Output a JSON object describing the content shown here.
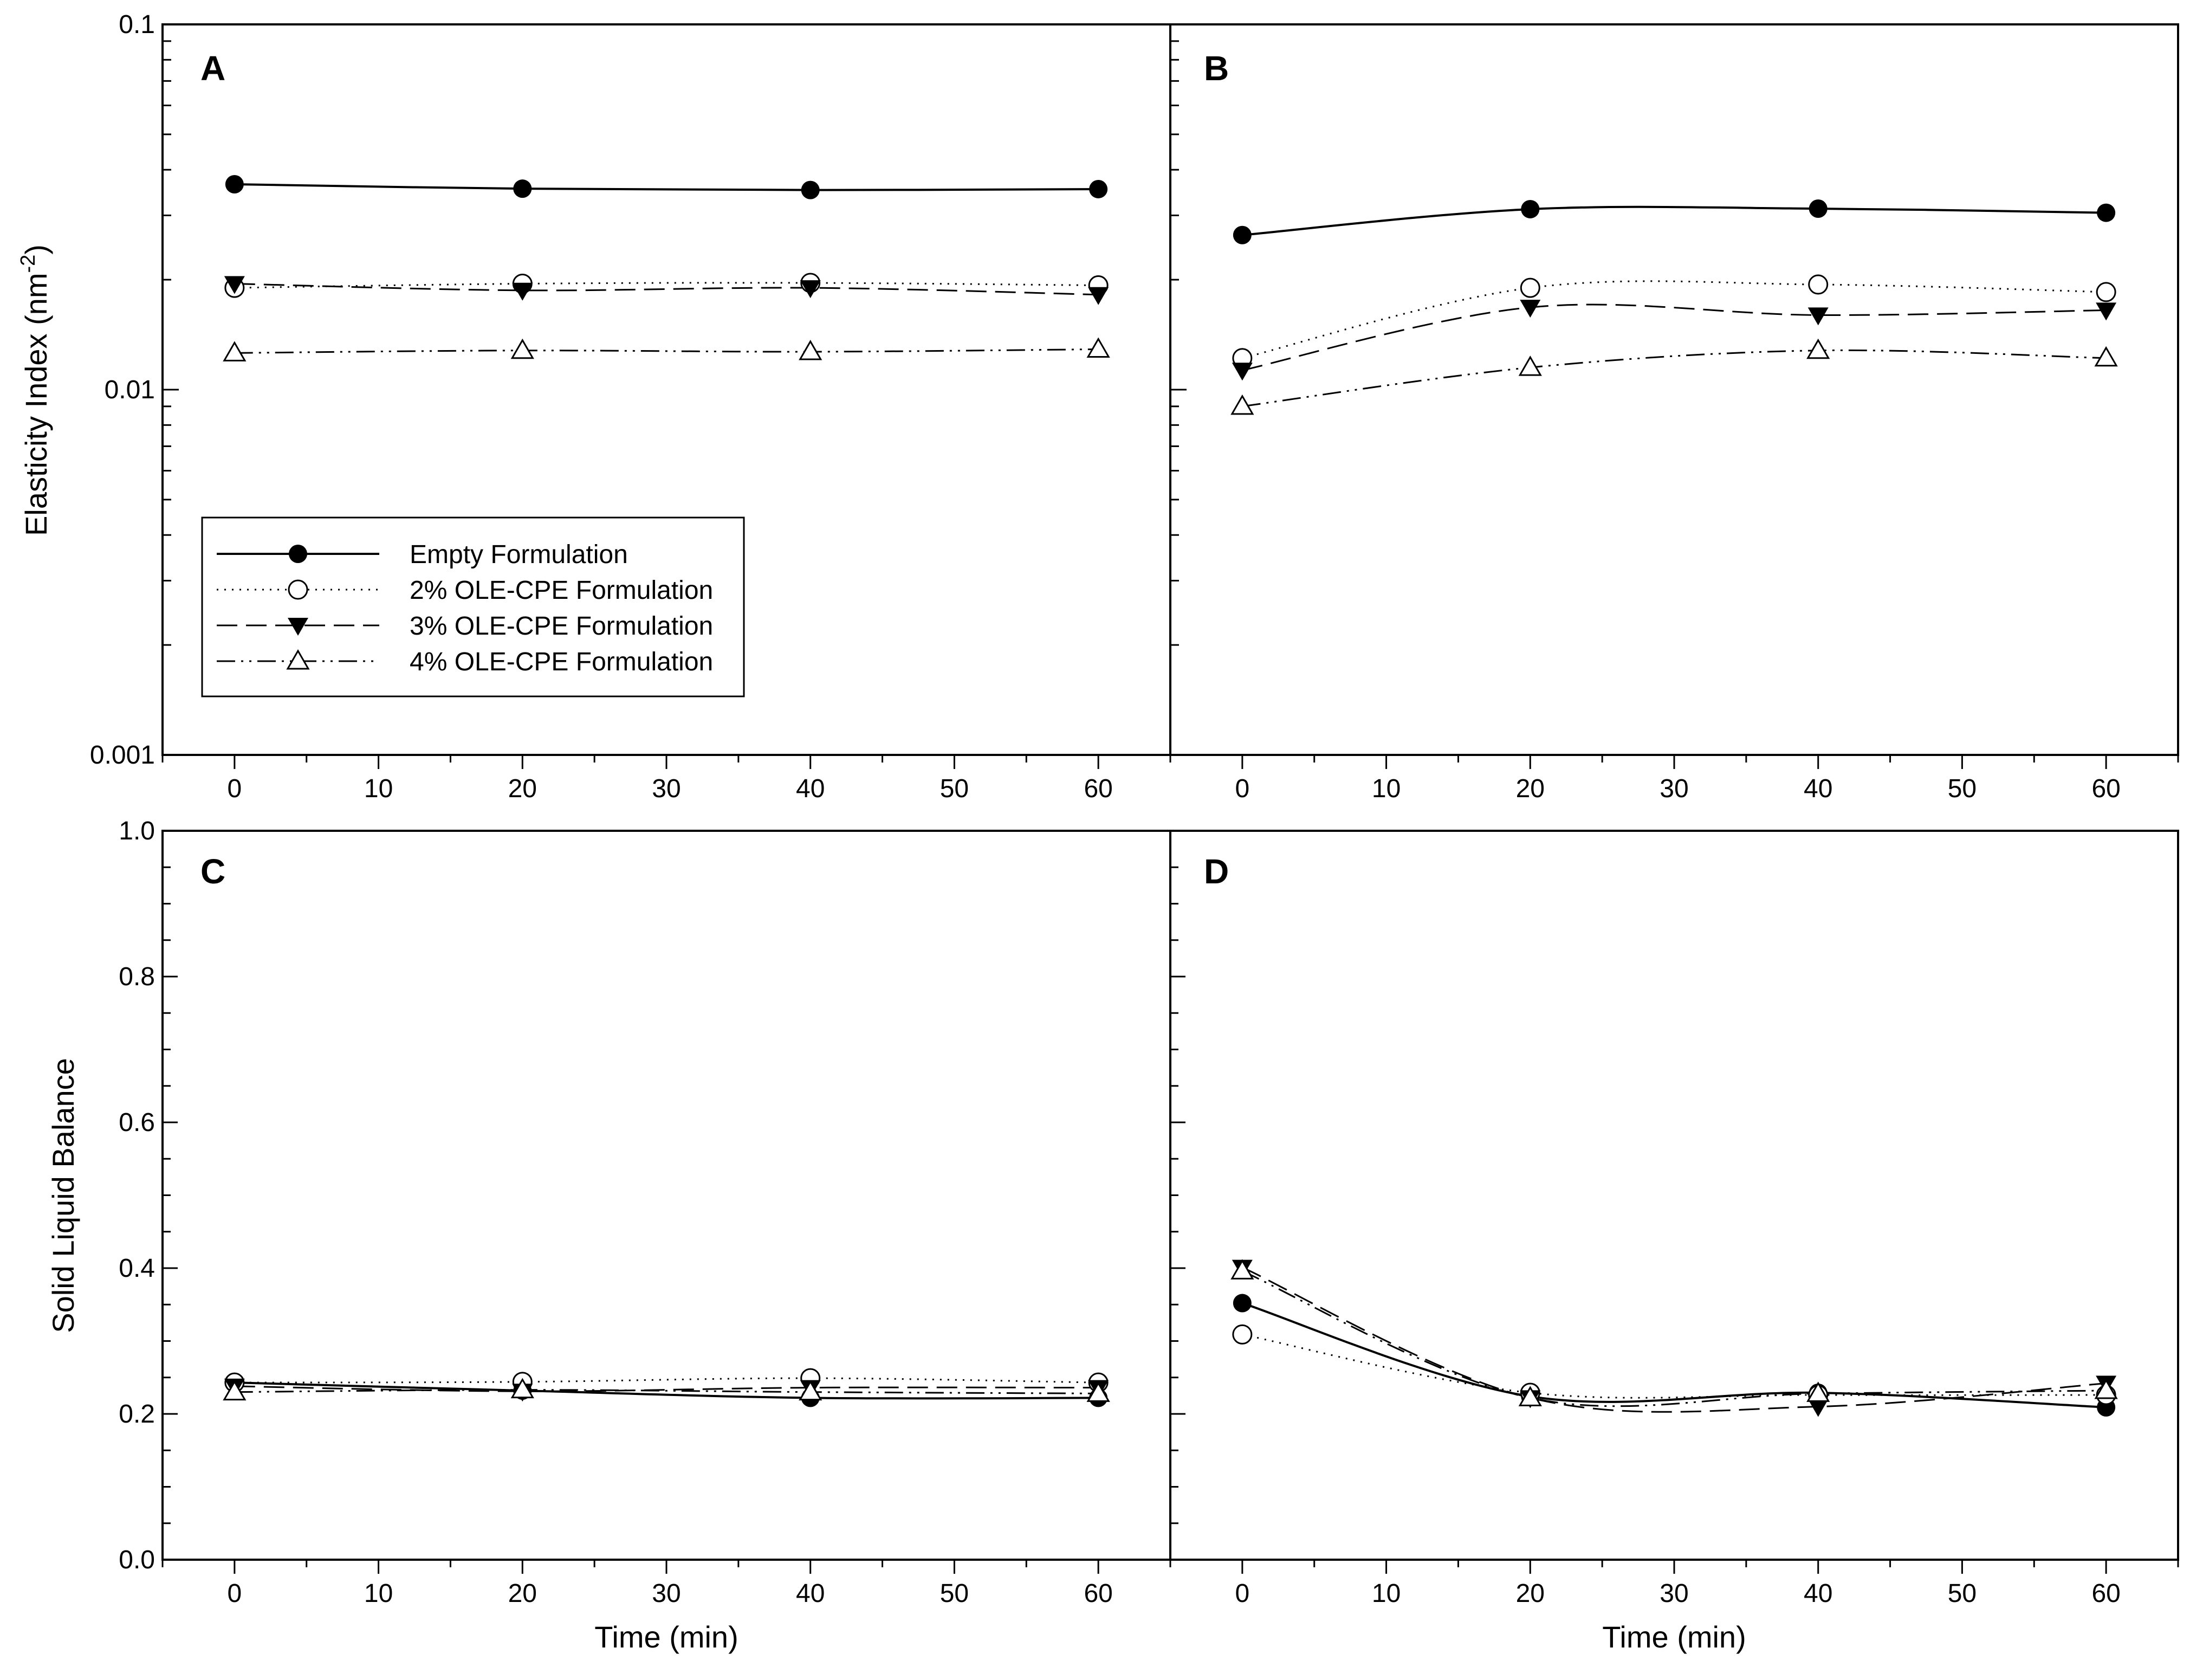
{
  "chart_data": [
    {
      "panel": "A",
      "type": "line",
      "yscale": "log",
      "ylabel": "Elasticity Index (nm",
      "ylabel_sup": "-2",
      "ylabel_end": ")",
      "xlabel": "",
      "xlim": [
        -5,
        65
      ],
      "ylim": [
        0.001,
        0.1
      ],
      "x_ticks": [
        0,
        10,
        20,
        30,
        40,
        50,
        60
      ],
      "x_tick_labels": [
        "0",
        "10",
        "20",
        "30",
        "40",
        "50",
        "60"
      ],
      "y_ticks": [
        0.001,
        0.01,
        0.1
      ],
      "y_tick_labels": [
        "0.001",
        "0.01",
        "0.1"
      ],
      "x": [
        0,
        20,
        40,
        60
      ],
      "series": [
        {
          "name": "Empty Formulation",
          "values": [
            0.0365,
            0.0355,
            0.0352,
            0.0354
          ]
        },
        {
          "name": "2% OLE-CPE Formulation",
          "values": [
            0.019,
            0.0195,
            0.0196,
            0.0193
          ]
        },
        {
          "name": "3% OLE-CPE Formulation",
          "values": [
            0.0195,
            0.0187,
            0.019,
            0.0182
          ]
        },
        {
          "name": "4% OLE-CPE Formulation",
          "values": [
            0.0126,
            0.0128,
            0.0127,
            0.0129
          ]
        }
      ]
    },
    {
      "panel": "B",
      "type": "line",
      "yscale": "log",
      "xlim": [
        -5,
        65
      ],
      "ylim": [
        0.001,
        0.1
      ],
      "x_ticks": [
        0,
        10,
        20,
        30,
        40,
        50,
        60
      ],
      "x_tick_labels": [
        "0",
        "10",
        "20",
        "30",
        "40",
        "50",
        "60"
      ],
      "x": [
        0,
        20,
        40,
        60
      ],
      "series": [
        {
          "name": "Empty Formulation",
          "values": [
            0.0265,
            0.0312,
            0.0313,
            0.0305
          ]
        },
        {
          "name": "2% OLE-CPE Formulation",
          "values": [
            0.0122,
            0.019,
            0.0194,
            0.0185
          ]
        },
        {
          "name": "3% OLE-CPE Formulation",
          "values": [
            0.0113,
            0.0168,
            0.016,
            0.0165
          ]
        },
        {
          "name": "4% OLE-CPE Formulation",
          "values": [
            0.009,
            0.0115,
            0.0128,
            0.0122
          ]
        }
      ]
    },
    {
      "panel": "C",
      "type": "line",
      "yscale": "linear",
      "ylabel": "Solid Liquid Balance",
      "xlabel": "Time (min)",
      "xlim": [
        -5,
        65
      ],
      "ylim": [
        0.0,
        1.0
      ],
      "x_ticks": [
        0,
        10,
        20,
        30,
        40,
        50,
        60
      ],
      "x_tick_labels": [
        "0",
        "10",
        "20",
        "30",
        "40",
        "50",
        "60"
      ],
      "y_ticks": [
        0.0,
        0.2,
        0.4,
        0.6,
        0.8,
        1.0
      ],
      "y_tick_labels": [
        "0.0",
        "0.2",
        "0.4",
        "0.6",
        "0.8",
        "1.0"
      ],
      "x": [
        0,
        20,
        40,
        60
      ],
      "series": [
        {
          "name": "Empty Formulation",
          "values": [
            0.243,
            0.232,
            0.222,
            0.222
          ]
        },
        {
          "name": "2% OLE-CPE Formulation",
          "values": [
            0.243,
            0.244,
            0.249,
            0.243
          ]
        },
        {
          "name": "3% OLE-CPE Formulation",
          "values": [
            0.238,
            0.231,
            0.236,
            0.236
          ]
        },
        {
          "name": "4% OLE-CPE Formulation",
          "values": [
            0.23,
            0.233,
            0.23,
            0.228
          ]
        }
      ]
    },
    {
      "panel": "D",
      "type": "line",
      "yscale": "linear",
      "xlabel": "Time (min)",
      "xlim": [
        -5,
        65
      ],
      "ylim": [
        0.0,
        1.0
      ],
      "x_ticks": [
        0,
        10,
        20,
        30,
        40,
        50,
        60
      ],
      "x_tick_labels": [
        "0",
        "10",
        "20",
        "30",
        "40",
        "50",
        "60"
      ],
      "x": [
        0,
        20,
        40,
        60
      ],
      "series": [
        {
          "name": "Empty Formulation",
          "values": [
            0.352,
            0.224,
            0.229,
            0.209
          ]
        },
        {
          "name": "2% OLE-CPE Formulation",
          "values": [
            0.309,
            0.229,
            0.226,
            0.226
          ]
        },
        {
          "name": "3% OLE-CPE Formulation",
          "values": [
            0.401,
            0.222,
            0.21,
            0.242
          ]
        },
        {
          "name": "4% OLE-CPE Formulation",
          "values": [
            0.396,
            0.222,
            0.228,
            0.232
          ]
        }
      ]
    }
  ],
  "legend": {
    "placement": "lower-left of panel A",
    "entries": [
      {
        "label": "Empty Formulation",
        "marker": "filled-circle",
        "line": "solid"
      },
      {
        "label": "2% OLE-CPE Formulation",
        "marker": "open-circle",
        "line": "dotted"
      },
      {
        "label": "3% OLE-CPE Formulation",
        "marker": "filled-triangle-down",
        "line": "dashed"
      },
      {
        "label": "4% OLE-CPE Formulation",
        "marker": "open-triangle-up",
        "line": "dash-dot-dot"
      }
    ]
  }
}
